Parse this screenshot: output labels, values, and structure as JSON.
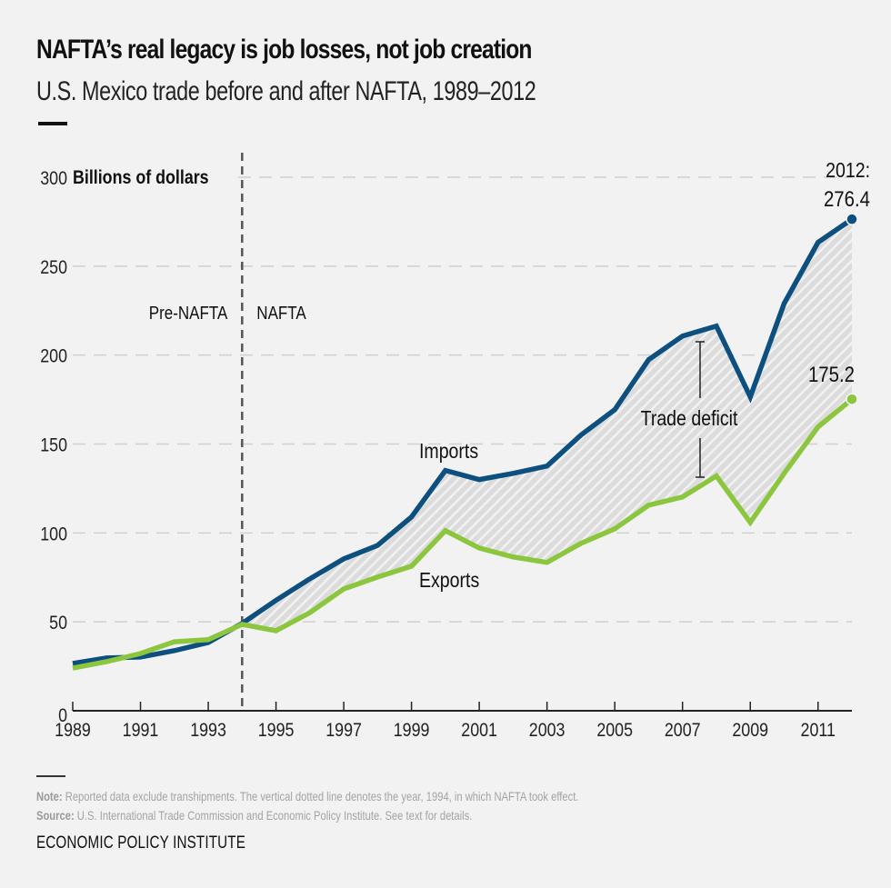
{
  "header": {
    "title": "NAFTA’s real legacy is job losses, not job creation",
    "subtitle": "U.S. Mexico trade before and after NAFTA, 1989–2012"
  },
  "footer": {
    "note_label": "Note:",
    "note_text": " Reported data exclude transhipments. The vertical dotted line denotes the year, 1994, in which NAFTA took effect.",
    "source_label": "Source:",
    "source_text": " U.S. International Trade Commission and Economic Policy Institute. See text for details.",
    "brand": "ECONOMIC POLICY INSTITUTE"
  },
  "colors": {
    "imports": "#0d4f7f",
    "exports": "#8cc63f",
    "deficit_fill": "#dcdcdc",
    "deficit_hatch": "#f2f2f2",
    "grid": "#d0d0d0",
    "divider": "#555555",
    "background": "#f2f2f2"
  },
  "chart_data": {
    "type": "line",
    "title": "NAFTA’s real legacy is job losses, not job creation",
    "subtitle": "U.S. Mexico trade before and after NAFTA, 1989–2012",
    "xlabel": "",
    "ylabel": "Billions of dollars",
    "ylim": [
      0,
      300
    ],
    "xlim": [
      1989,
      2012
    ],
    "yticks": [
      0,
      50,
      100,
      150,
      200,
      250,
      300
    ],
    "xticks": [
      1989,
      1991,
      1993,
      1995,
      1997,
      1999,
      2001,
      2003,
      2005,
      2007,
      2009,
      2011
    ],
    "grid": true,
    "x": [
      1989,
      1990,
      1991,
      1992,
      1993,
      1994,
      1995,
      1996,
      1997,
      1998,
      1999,
      2000,
      2001,
      2002,
      2003,
      2004,
      2005,
      2006,
      2007,
      2008,
      2009,
      2010,
      2011,
      2012
    ],
    "series": [
      {
        "name": "Imports",
        "values": [
          26.6,
          29.7,
          30.2,
          33.8,
          38.4,
          49.1,
          62.1,
          74.2,
          85.4,
          93.0,
          109.0,
          135.1,
          130.0,
          133.5,
          137.6,
          155.0,
          169.3,
          197.4,
          210.7,
          216.3,
          176.5,
          229.0,
          263.4,
          276.4
        ]
      },
      {
        "name": "Exports",
        "values": [
          24.0,
          27.6,
          32.2,
          38.8,
          40.0,
          48.6,
          45.0,
          55.2,
          68.5,
          75.2,
          81.3,
          101.3,
          91.5,
          86.5,
          83.4,
          94.1,
          102.3,
          115.6,
          120.2,
          132.0,
          105.9,
          133.5,
          159.6,
          175.2
        ]
      }
    ],
    "divider_year": 1994,
    "annotations": {
      "pre_nafta": "Pre-NAFTA",
      "nafta": "NAFTA",
      "imports_label": "Imports",
      "exports_label": "Exports",
      "deficit_label": "Trade deficit",
      "end_year_label": "2012:",
      "imports_end_value": "276.4",
      "exports_end_value": "175.2",
      "y_unit_label": "Billions of dollars"
    }
  }
}
